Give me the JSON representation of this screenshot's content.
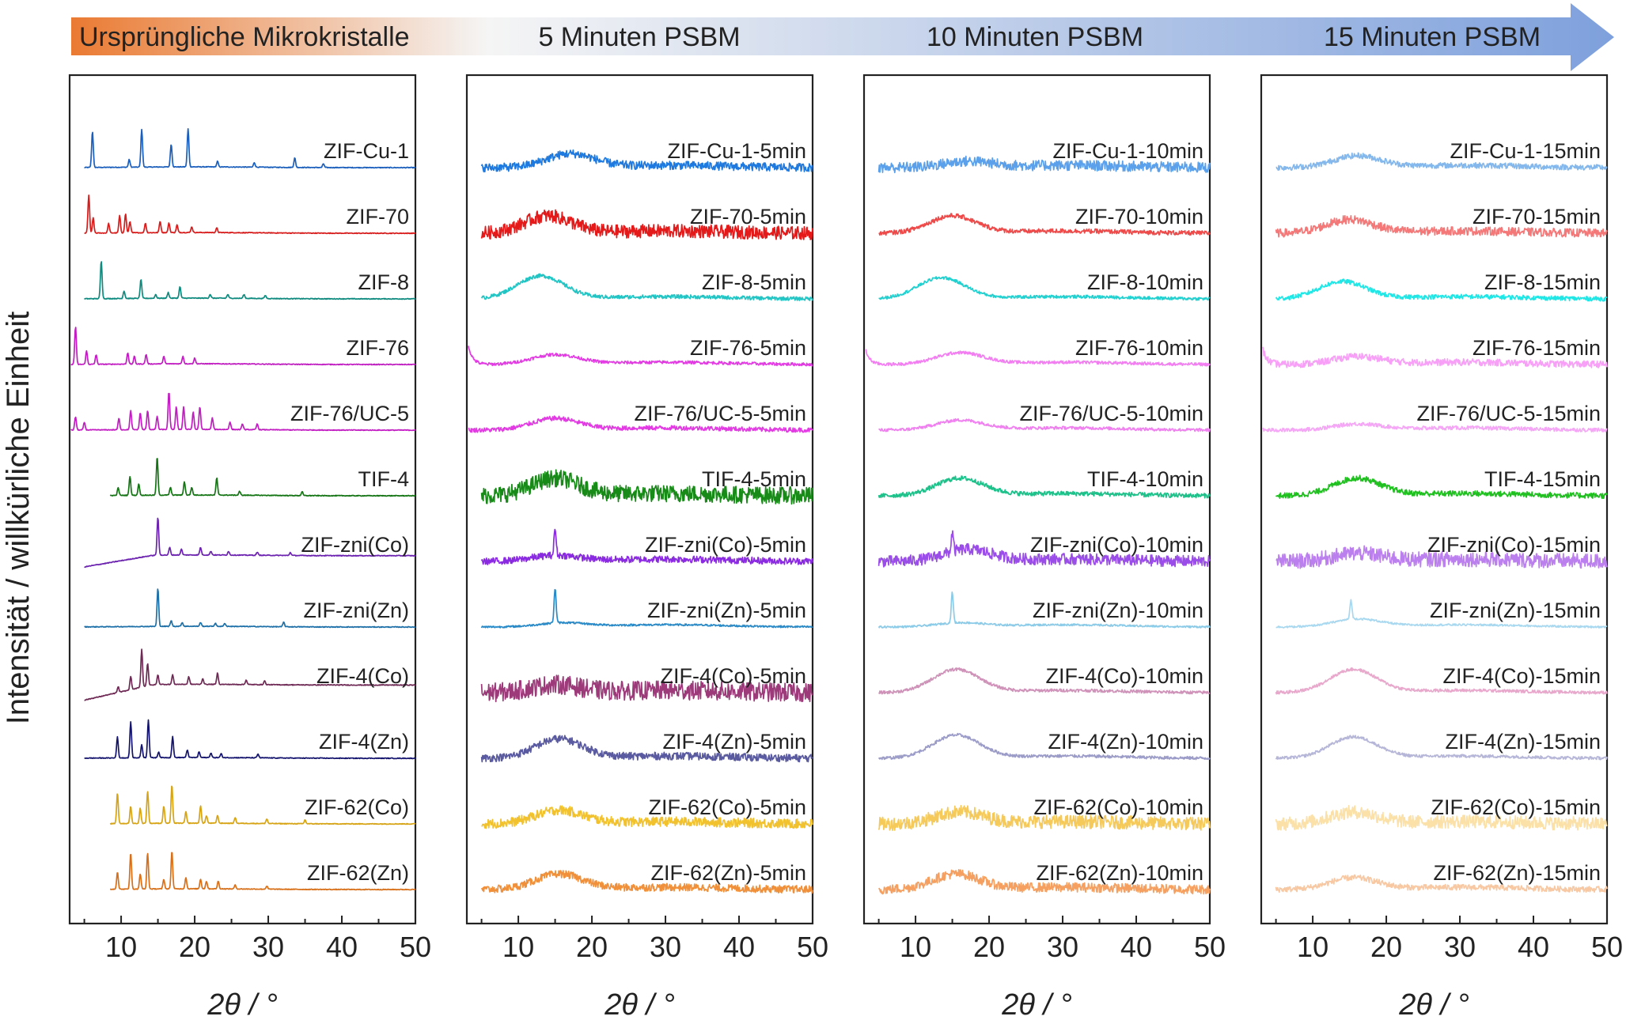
{
  "header": {
    "stages": [
      "Ursprüngliche Mikrokristalle",
      "5 Minuten PSBM",
      "10 Minuten PSBM",
      "15 Minuten PSBM"
    ],
    "gradient_colors": [
      "#ea7a32",
      "#f5f5f5",
      "#7ea0dc"
    ]
  },
  "chart_data": [
    {
      "type": "line",
      "title": "Ursprüngliche Mikrokristalle",
      "xlabel": "2θ / °",
      "ylabel": "Intensität / willkürliche Einheit",
      "xlim": [
        3,
        50
      ],
      "xticks": [
        "10",
        "20",
        "30",
        "40",
        "50"
      ],
      "profile": "crystalline",
      "series": [
        {
          "name": "ZIF-Cu-1",
          "color": "#1b5fbd",
          "x_start": 5,
          "peaks": [
            [
              6.1,
              0.95
            ],
            [
              11.1,
              0.2
            ],
            [
              12.8,
              1.0
            ],
            [
              16.8,
              0.6
            ],
            [
              19.1,
              1.0
            ],
            [
              23.1,
              0.15
            ],
            [
              28.1,
              0.12
            ],
            [
              33.6,
              0.25
            ],
            [
              37.5,
              0.1
            ]
          ]
        },
        {
          "name": "ZIF-70",
          "color": "#d81c1c",
          "x_start": 5,
          "peaks": [
            [
              5.6,
              1.0
            ],
            [
              6.2,
              0.4
            ],
            [
              8.3,
              0.25
            ],
            [
              9.8,
              0.45
            ],
            [
              10.6,
              0.5
            ],
            [
              11.2,
              0.3
            ],
            [
              13.3,
              0.25
            ],
            [
              15.3,
              0.3
            ],
            [
              16.5,
              0.25
            ],
            [
              17.6,
              0.2
            ],
            [
              19.6,
              0.15
            ],
            [
              23.0,
              0.12
            ]
          ]
        },
        {
          "name": "ZIF-8",
          "color": "#0f8a7e",
          "x_start": 5,
          "peaks": [
            [
              7.3,
              1.0
            ],
            [
              10.4,
              0.2
            ],
            [
              12.7,
              0.5
            ],
            [
              14.7,
              0.1
            ],
            [
              16.4,
              0.15
            ],
            [
              18.0,
              0.3
            ],
            [
              22.1,
              0.1
            ],
            [
              24.5,
              0.1
            ],
            [
              26.7,
              0.1
            ],
            [
              29.6,
              0.08
            ]
          ]
        },
        {
          "name": "ZIF-76",
          "color": "#c21dc2",
          "x_start": 3.2,
          "peaks": [
            [
              3.8,
              1.0
            ],
            [
              5.3,
              0.35
            ],
            [
              6.6,
              0.25
            ],
            [
              10.9,
              0.3
            ],
            [
              11.8,
              0.2
            ],
            [
              13.4,
              0.25
            ],
            [
              15.8,
              0.2
            ],
            [
              18.4,
              0.2
            ],
            [
              20.0,
              0.15
            ]
          ]
        },
        {
          "name": "ZIF-76/UC-5",
          "color": "#c21dc2",
          "x_start": 3.2,
          "peaks": [
            [
              3.8,
              0.35
            ],
            [
              5.0,
              0.2
            ],
            [
              9.7,
              0.3
            ],
            [
              11.3,
              0.5
            ],
            [
              12.6,
              0.45
            ],
            [
              13.6,
              0.5
            ],
            [
              14.9,
              0.35
            ],
            [
              16.5,
              1.0
            ],
            [
              17.5,
              0.6
            ],
            [
              18.5,
              0.6
            ],
            [
              19.8,
              0.45
            ],
            [
              20.7,
              0.6
            ],
            [
              22.4,
              0.3
            ],
            [
              24.8,
              0.2
            ],
            [
              26.5,
              0.15
            ],
            [
              28.5,
              0.15
            ]
          ]
        },
        {
          "name": "TIF-4",
          "color": "#157515",
          "x_start": 8.5,
          "peaks": [
            [
              9.6,
              0.2
            ],
            [
              11.2,
              0.5
            ],
            [
              12.4,
              0.3
            ],
            [
              14.9,
              1.0
            ],
            [
              16.7,
              0.2
            ],
            [
              18.6,
              0.35
            ],
            [
              19.6,
              0.2
            ],
            [
              23.0,
              0.45
            ],
            [
              26.1,
              0.1
            ],
            [
              34.6,
              0.1
            ]
          ]
        },
        {
          "name": "ZIF-zni(Co)",
          "color": "#6c23b0",
          "x_start": 5,
          "slope": 0.15,
          "peaks": [
            [
              15.0,
              1.0
            ],
            [
              16.6,
              0.2
            ],
            [
              18.2,
              0.15
            ],
            [
              20.8,
              0.2
            ],
            [
              22.2,
              0.1
            ],
            [
              24.6,
              0.1
            ],
            [
              28.5,
              0.08
            ],
            [
              33.0,
              0.08
            ]
          ]
        },
        {
          "name": "ZIF-zni(Zn)",
          "color": "#1e70a8",
          "x_start": 5,
          "peaks": [
            [
              15.0,
              1.0
            ],
            [
              16.8,
              0.15
            ],
            [
              18.3,
              0.1
            ],
            [
              20.8,
              0.1
            ],
            [
              22.8,
              0.08
            ],
            [
              24.1,
              0.08
            ],
            [
              32.1,
              0.12
            ]
          ]
        },
        {
          "name": "ZIF-4(Co)",
          "color": "#6e2a54",
          "x_start": 5,
          "slope": 0.2,
          "peaks": [
            [
              9.6,
              0.15
            ],
            [
              11.3,
              0.35
            ],
            [
              12.8,
              1.0
            ],
            [
              13.6,
              0.6
            ],
            [
              15.0,
              0.25
            ],
            [
              17.0,
              0.25
            ],
            [
              19.2,
              0.2
            ],
            [
              21.1,
              0.15
            ],
            [
              23.1,
              0.3
            ],
            [
              27.0,
              0.12
            ],
            [
              29.5,
              0.1
            ]
          ]
        },
        {
          "name": "ZIF-4(Zn)",
          "color": "#14146e",
          "x_start": 5,
          "peaks": [
            [
              9.5,
              0.55
            ],
            [
              11.3,
              0.95
            ],
            [
              12.8,
              0.35
            ],
            [
              13.7,
              1.0
            ],
            [
              15.1,
              0.15
            ],
            [
              17.0,
              0.55
            ],
            [
              19.0,
              0.2
            ],
            [
              20.6,
              0.15
            ],
            [
              22.2,
              0.12
            ],
            [
              23.6,
              0.1
            ],
            [
              28.6,
              0.1
            ]
          ]
        },
        {
          "name": "ZIF-62(Co)",
          "color": "#d6a415",
          "x_start": 8.5,
          "peaks": [
            [
              9.5,
              0.8
            ],
            [
              11.3,
              0.45
            ],
            [
              12.6,
              0.4
            ],
            [
              13.6,
              0.85
            ],
            [
              15.8,
              0.45
            ],
            [
              16.9,
              1.0
            ],
            [
              18.8,
              0.3
            ],
            [
              20.8,
              0.45
            ],
            [
              21.6,
              0.2
            ],
            [
              23.1,
              0.2
            ],
            [
              25.5,
              0.15
            ],
            [
              29.8,
              0.12
            ],
            [
              35.0,
              0.1
            ]
          ]
        },
        {
          "name": "ZIF-62(Zn)",
          "color": "#d8701a",
          "x_start": 8.5,
          "peaks": [
            [
              9.5,
              0.45
            ],
            [
              11.3,
              0.95
            ],
            [
              12.6,
              0.4
            ],
            [
              13.6,
              0.95
            ],
            [
              15.8,
              0.25
            ],
            [
              16.9,
              1.0
            ],
            [
              18.8,
              0.3
            ],
            [
              20.8,
              0.25
            ],
            [
              21.6,
              0.2
            ],
            [
              23.2,
              0.2
            ],
            [
              25.5,
              0.1
            ],
            [
              29.8,
              0.08
            ]
          ]
        }
      ]
    },
    {
      "type": "line",
      "title": "5 Minuten PSBM",
      "xlabel": "2θ / °",
      "xlim": [
        3,
        50
      ],
      "xticks": [
        "10",
        "20",
        "30",
        "40",
        "50"
      ],
      "profile": "amorphous",
      "series": [
        {
          "name": "ZIF-Cu-1-5min",
          "color": "#1f7ae0",
          "hump_center": 17,
          "hump_height": 0.35,
          "noise": 0.22,
          "x_start": 5
        },
        {
          "name": "ZIF-70-5min",
          "color": "#e41a1a",
          "hump_center": 14,
          "hump_height": 0.45,
          "noise": 0.35,
          "x_start": 5
        },
        {
          "name": "ZIF-8-5min",
          "color": "#23c4c4",
          "hump_center": 13,
          "hump_height": 0.6,
          "noise": 0.1,
          "x_start": 5
        },
        {
          "name": "ZIF-76-5min",
          "color": "#e33be3",
          "hump_center": 15,
          "hump_height": 0.25,
          "noise": 0.08,
          "x_start": 3.2,
          "edge": 0.5
        },
        {
          "name": "ZIF-76/UC-5-5min",
          "color": "#e33be3",
          "hump_center": 15,
          "hump_height": 0.3,
          "noise": 0.12,
          "x_start": 3.2
        },
        {
          "name": "TIF-4-5min",
          "color": "#178a17",
          "hump_center": 15,
          "hump_height": 0.45,
          "noise": 0.45,
          "x_start": 5
        },
        {
          "name": "ZIF-zni(Co)-5min",
          "color": "#8a2be2",
          "hump_center": 15,
          "hump_height": 0.15,
          "noise": 0.18,
          "x_start": 5,
          "spike": 15,
          "spike_height": 0.7
        },
        {
          "name": "ZIF-zni(Zn)-5min",
          "color": "#2a8ac7",
          "hump_center": 16,
          "hump_height": 0.1,
          "noise": 0.05,
          "x_start": 5,
          "spike": 15,
          "spike_height": 0.9
        },
        {
          "name": "ZIF-4(Co)-5min",
          "color": "#9c3a7a",
          "hump_center": 15,
          "hump_height": 0.2,
          "noise": 0.5,
          "x_start": 5
        },
        {
          "name": "ZIF-4(Zn)-5min",
          "color": "#5a5aa0",
          "hump_center": 15.5,
          "hump_height": 0.5,
          "noise": 0.2,
          "x_start": 5
        },
        {
          "name": "ZIF-62(Co)-5min",
          "color": "#f2c12e",
          "hump_center": 15.5,
          "hump_height": 0.35,
          "noise": 0.25,
          "x_start": 5
        },
        {
          "name": "ZIF-62(Zn)-5min",
          "color": "#f0903a",
          "hump_center": 15.5,
          "hump_height": 0.4,
          "noise": 0.2,
          "x_start": 5
        }
      ]
    },
    {
      "type": "line",
      "title": "10 Minuten PSBM",
      "xlabel": "2θ / °",
      "xlim": [
        3,
        50
      ],
      "xticks": [
        "10",
        "20",
        "30",
        "40",
        "50"
      ],
      "profile": "amorphous",
      "series": [
        {
          "name": "ZIF-Cu-1-10min",
          "color": "#5aa0ea",
          "hump_center": 17,
          "hump_height": 0.15,
          "noise": 0.28,
          "x_start": 5
        },
        {
          "name": "ZIF-70-10min",
          "color": "#ee4a4a",
          "hump_center": 15,
          "hump_height": 0.45,
          "noise": 0.12,
          "x_start": 5
        },
        {
          "name": "ZIF-8-10min",
          "color": "#22d0d0",
          "hump_center": 13.5,
          "hump_height": 0.55,
          "noise": 0.08,
          "x_start": 5
        },
        {
          "name": "ZIF-76-10min",
          "color": "#f27ef2",
          "hump_center": 16,
          "hump_height": 0.3,
          "noise": 0.08,
          "x_start": 3.2,
          "edge": 0.4
        },
        {
          "name": "ZIF-76/UC-5-10min",
          "color": "#f080f0",
          "hump_center": 16,
          "hump_height": 0.25,
          "noise": 0.08,
          "x_start": 5
        },
        {
          "name": "TIF-4-10min",
          "color": "#1fc18a",
          "hump_center": 16,
          "hump_height": 0.45,
          "noise": 0.12,
          "x_start": 5
        },
        {
          "name": "ZIF-zni(Co)-10min",
          "color": "#9a4de8",
          "hump_center": 17,
          "hump_height": 0.3,
          "noise": 0.3,
          "x_start": 5,
          "spike": 15,
          "spike_height": 0.5
        },
        {
          "name": "ZIF-zni(Zn)-10min",
          "color": "#8ccbe8",
          "hump_center": 16,
          "hump_height": 0.1,
          "noise": 0.05,
          "x_start": 5,
          "spike": 15,
          "spike_height": 0.8
        },
        {
          "name": "ZIF-4(Co)-10min",
          "color": "#cf92b8",
          "hump_center": 15.5,
          "hump_height": 0.6,
          "noise": 0.08,
          "x_start": 5
        },
        {
          "name": "ZIF-4(Zn)-10min",
          "color": "#9c9cc8",
          "hump_center": 15.5,
          "hump_height": 0.6,
          "noise": 0.08,
          "x_start": 5
        },
        {
          "name": "ZIF-62(Co)-10min",
          "color": "#f5c95a",
          "hump_center": 16,
          "hump_height": 0.3,
          "noise": 0.35,
          "x_start": 5
        },
        {
          "name": "ZIF-62(Zn)-10min",
          "color": "#f5a060",
          "hump_center": 15.5,
          "hump_height": 0.4,
          "noise": 0.25,
          "x_start": 5
        }
      ]
    },
    {
      "type": "line",
      "title": "15 Minuten PSBM",
      "xlabel": "2θ / °",
      "xlim": [
        3,
        50
      ],
      "xticks": [
        "10",
        "20",
        "30",
        "40",
        "50"
      ],
      "profile": "amorphous",
      "series": [
        {
          "name": "ZIF-Cu-1-15min",
          "color": "#84b8ec",
          "hump_center": 16,
          "hump_height": 0.3,
          "noise": 0.15,
          "x_start": 5
        },
        {
          "name": "ZIF-70-15min",
          "color": "#f47878",
          "hump_center": 15,
          "hump_height": 0.35,
          "noise": 0.22,
          "x_start": 5
        },
        {
          "name": "ZIF-8-15min",
          "color": "#20e6e6",
          "hump_center": 14,
          "hump_height": 0.45,
          "noise": 0.12,
          "x_start": 5
        },
        {
          "name": "ZIF-76-15min",
          "color": "#f8a0f8",
          "hump_center": 16,
          "hump_height": 0.2,
          "noise": 0.18,
          "x_start": 3.2,
          "edge": 0.4
        },
        {
          "name": "ZIF-76/UC-5-15min",
          "color": "#f6a6f6",
          "hump_center": 16,
          "hump_height": 0.15,
          "noise": 0.1,
          "x_start": 3.2
        },
        {
          "name": "TIF-4-15min",
          "color": "#20c020",
          "hump_center": 16,
          "hump_height": 0.45,
          "noise": 0.15,
          "x_start": 5
        },
        {
          "name": "ZIF-zni(Co)-15min",
          "color": "#bb80ee",
          "hump_center": 16,
          "hump_height": 0.2,
          "noise": 0.4,
          "x_start": 5
        },
        {
          "name": "ZIF-zni(Zn)-15min",
          "color": "#a8d8f0",
          "hump_center": 16,
          "hump_height": 0.2,
          "noise": 0.05,
          "x_start": 5,
          "spike": 15.2,
          "spike_height": 0.5
        },
        {
          "name": "ZIF-4(Co)-15min",
          "color": "#e8a8cc",
          "hump_center": 15.5,
          "hump_height": 0.6,
          "noise": 0.08,
          "x_start": 5
        },
        {
          "name": "ZIF-4(Zn)-15min",
          "color": "#b6b6d8",
          "hump_center": 15.5,
          "hump_height": 0.55,
          "noise": 0.08,
          "x_start": 5
        },
        {
          "name": "ZIF-62(Co)-15min",
          "color": "#fbe0a8",
          "hump_center": 15.5,
          "hump_height": 0.3,
          "noise": 0.35,
          "x_start": 5
        },
        {
          "name": "ZIF-62(Zn)-15min",
          "color": "#f8c8a2",
          "hump_center": 15.5,
          "hump_height": 0.3,
          "noise": 0.15,
          "x_start": 5
        }
      ]
    }
  ]
}
